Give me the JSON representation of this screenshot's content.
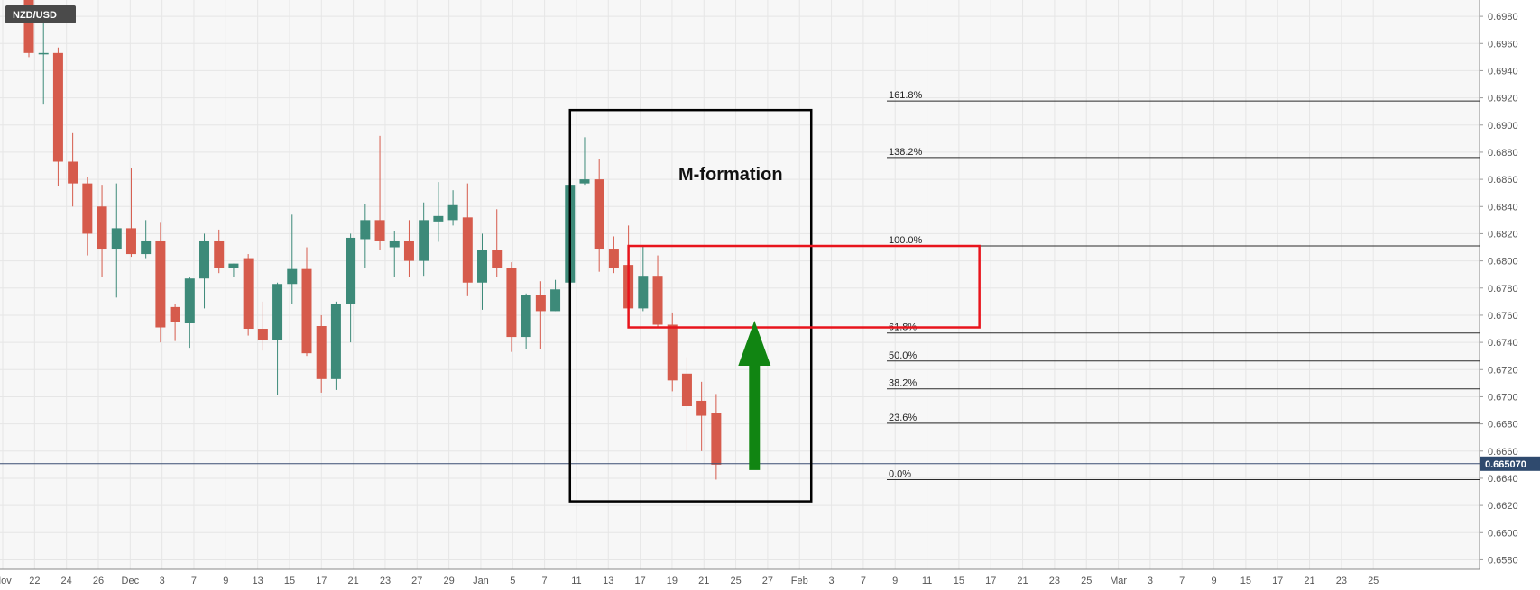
{
  "colors": {
    "up": "#3d8a79",
    "down": "#d65b4c",
    "grid": "#e6e6e6",
    "plot_bg": "#f7f7f7",
    "box": "#000000",
    "zone": "#e8141c",
    "arrow": "#118512",
    "price_line": "#3b4f73",
    "price_label_bg": "#2f4a6e",
    "symbol_bg": "#4a4a4a"
  },
  "symbol": "NZD/USD",
  "current_price_label": "0.665070",
  "annotation": "M-formation",
  "chart_data": {
    "type": "candlestick",
    "ylim": [
      0.6573,
      0.6992
    ],
    "y_ticks": [
      "0.6580",
      "0.6600",
      "0.6620",
      "0.6640",
      "0.6660",
      "0.6680",
      "0.6700",
      "0.6720",
      "0.6740",
      "0.6760",
      "0.6780",
      "0.6800",
      "0.6820",
      "0.6840",
      "0.6860",
      "0.6880",
      "0.6900",
      "0.6920",
      "0.6940",
      "0.6960",
      "0.6980"
    ],
    "x_ticks": [
      "Nov",
      "22",
      "24",
      "26",
      "Dec",
      "3",
      "7",
      "9",
      "13",
      "15",
      "17",
      "21",
      "23",
      "27",
      "29",
      "Jan",
      "5",
      "7",
      "11",
      "13",
      "17",
      "19",
      "21",
      "25",
      "27",
      "Feb",
      "3",
      "7",
      "9",
      "11",
      "15",
      "17",
      "21",
      "23",
      "25",
      "Mar",
      "3",
      "7",
      "9",
      "15",
      "17",
      "21",
      "23",
      "25"
    ],
    "candles": [
      {
        "o": 0.6992,
        "h": 0.6996,
        "l": 0.695,
        "c": 0.6953
      },
      {
        "o": 0.6953,
        "h": 0.698,
        "l": 0.6915,
        "c": 0.6953
      },
      {
        "o": 0.6953,
        "h": 0.6957,
        "l": 0.6855,
        "c": 0.6873
      },
      {
        "o": 0.6873,
        "h": 0.6894,
        "l": 0.684,
        "c": 0.6857
      },
      {
        "o": 0.6857,
        "h": 0.6862,
        "l": 0.6804,
        "c": 0.682
      },
      {
        "o": 0.684,
        "h": 0.6856,
        "l": 0.6788,
        "c": 0.6809
      },
      {
        "o": 0.6809,
        "h": 0.6857,
        "l": 0.6773,
        "c": 0.6824
      },
      {
        "o": 0.6824,
        "h": 0.6868,
        "l": 0.6803,
        "c": 0.6805
      },
      {
        "o": 0.6805,
        "h": 0.683,
        "l": 0.6802,
        "c": 0.6815
      },
      {
        "o": 0.6815,
        "h": 0.6828,
        "l": 0.674,
        "c": 0.6751
      },
      {
        "o": 0.6766,
        "h": 0.6768,
        "l": 0.6741,
        "c": 0.6755
      },
      {
        "o": 0.6754,
        "h": 0.6788,
        "l": 0.6736,
        "c": 0.6787
      },
      {
        "o": 0.6787,
        "h": 0.682,
        "l": 0.6765,
        "c": 0.6815
      },
      {
        "o": 0.6815,
        "h": 0.6823,
        "l": 0.6791,
        "c": 0.6795
      },
      {
        "o": 0.6795,
        "h": 0.6798,
        "l": 0.6788,
        "c": 0.6798
      },
      {
        "o": 0.6802,
        "h": 0.6805,
        "l": 0.6745,
        "c": 0.675
      },
      {
        "o": 0.675,
        "h": 0.677,
        "l": 0.6734,
        "c": 0.6742
      },
      {
        "o": 0.6742,
        "h": 0.6784,
        "l": 0.6701,
        "c": 0.6783
      },
      {
        "o": 0.6783,
        "h": 0.6834,
        "l": 0.6768,
        "c": 0.6794
      },
      {
        "o": 0.6794,
        "h": 0.681,
        "l": 0.673,
        "c": 0.6732
      },
      {
        "o": 0.6752,
        "h": 0.676,
        "l": 0.6703,
        "c": 0.6713
      },
      {
        "o": 0.6713,
        "h": 0.677,
        "l": 0.6705,
        "c": 0.6768
      },
      {
        "o": 0.6768,
        "h": 0.682,
        "l": 0.674,
        "c": 0.6817
      },
      {
        "o": 0.6816,
        "h": 0.6842,
        "l": 0.6795,
        "c": 0.683
      },
      {
        "o": 0.683,
        "h": 0.6892,
        "l": 0.6808,
        "c": 0.6815
      },
      {
        "o": 0.681,
        "h": 0.6822,
        "l": 0.6788,
        "c": 0.6815
      },
      {
        "o": 0.6815,
        "h": 0.683,
        "l": 0.6788,
        "c": 0.68
      },
      {
        "o": 0.68,
        "h": 0.6843,
        "l": 0.6789,
        "c": 0.683
      },
      {
        "o": 0.6829,
        "h": 0.6858,
        "l": 0.6814,
        "c": 0.6833
      },
      {
        "o": 0.683,
        "h": 0.6852,
        "l": 0.6826,
        "c": 0.6841
      },
      {
        "o": 0.6832,
        "h": 0.6857,
        "l": 0.6774,
        "c": 0.6784
      },
      {
        "o": 0.6784,
        "h": 0.682,
        "l": 0.6764,
        "c": 0.6808
      },
      {
        "o": 0.6808,
        "h": 0.6838,
        "l": 0.6788,
        "c": 0.6795
      },
      {
        "o": 0.6795,
        "h": 0.6799,
        "l": 0.6733,
        "c": 0.6744
      },
      {
        "o": 0.6744,
        "h": 0.6776,
        "l": 0.6735,
        "c": 0.6775
      },
      {
        "o": 0.6775,
        "h": 0.6785,
        "l": 0.6735,
        "c": 0.6763
      },
      {
        "o": 0.6763,
        "h": 0.6786,
        "l": 0.6763,
        "c": 0.6779
      },
      {
        "o": 0.6784,
        "h": 0.6856,
        "l": 0.6773,
        "c": 0.6856
      },
      {
        "o": 0.6857,
        "h": 0.6891,
        "l": 0.6856,
        "c": 0.686
      },
      {
        "o": 0.686,
        "h": 0.6875,
        "l": 0.6792,
        "c": 0.6809
      },
      {
        "o": 0.6809,
        "h": 0.6818,
        "l": 0.6791,
        "c": 0.6795
      },
      {
        "o": 0.6797,
        "h": 0.6826,
        "l": 0.6751,
        "c": 0.6765
      },
      {
        "o": 0.6765,
        "h": 0.6811,
        "l": 0.6763,
        "c": 0.6789
      },
      {
        "o": 0.6789,
        "h": 0.6804,
        "l": 0.6751,
        "c": 0.6753
      },
      {
        "o": 0.6753,
        "h": 0.6762,
        "l": 0.6704,
        "c": 0.6712
      },
      {
        "o": 0.6717,
        "h": 0.6729,
        "l": 0.666,
        "c": 0.6693
      },
      {
        "o": 0.6697,
        "h": 0.6711,
        "l": 0.666,
        "c": 0.6686
      },
      {
        "o": 0.6688,
        "h": 0.6702,
        "l": 0.6639,
        "c": 0.665
      }
    ],
    "fib_levels": [
      {
        "label": "161.8%",
        "value": 0.69177
      },
      {
        "label": "138.2%",
        "value": 0.68761
      },
      {
        "label": "100.0%",
        "value": 0.6811
      },
      {
        "label": "61.8%",
        "value": 0.67469
      },
      {
        "label": "50.0%",
        "value": 0.67263
      },
      {
        "label": "38.2%",
        "value": 0.67058
      },
      {
        "label": "23.6%",
        "value": 0.66805
      },
      {
        "label": "0.0%",
        "value": 0.6639
      }
    ],
    "current_price": 0.66507,
    "m_box": {
      "start_index": 37,
      "end_index": 53.5,
      "top": 0.6911,
      "bottom": 0.6623
    },
    "resistance_zone": {
      "start_index": 41,
      "end_index": 65,
      "top": 0.6811,
      "bottom": 0.6751
    },
    "arrow": {
      "index": 49,
      "from": 0.6646,
      "to": 0.6756
    }
  }
}
